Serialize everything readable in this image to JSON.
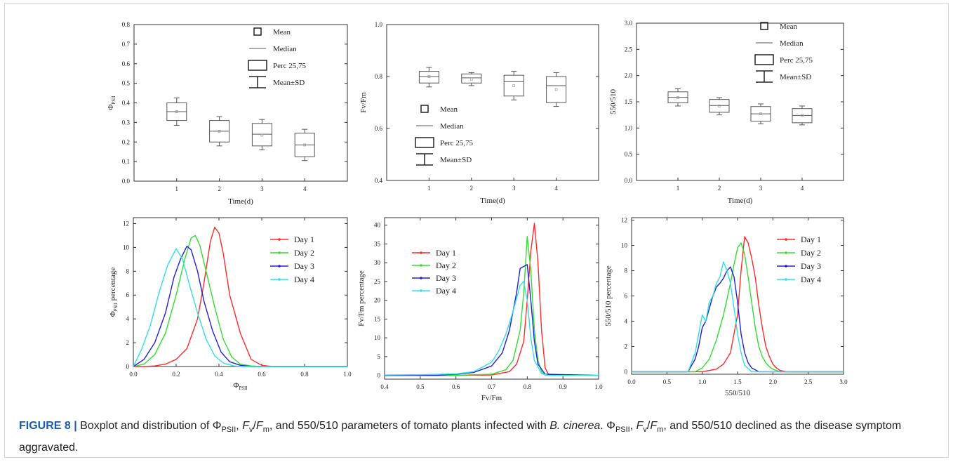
{
  "figure": {
    "label": "FIGURE 8 |",
    "caption_parts": [
      {
        "t": " Boxplot and distribution of "
      },
      {
        "t": "Φ"
      },
      {
        "t": "PSII",
        "sub": true
      },
      {
        "t": ", "
      },
      {
        "t": "F",
        "it": true
      },
      {
        "t": "v",
        "sub": true
      },
      {
        "t": "/"
      },
      {
        "t": "F",
        "it": true
      },
      {
        "t": "m",
        "sub": true
      },
      {
        "t": ", and 550/510 parameters of tomato plants infected with "
      },
      {
        "t": "B. cinerea",
        "it": true
      },
      {
        "t": ". "
      },
      {
        "t": "Φ"
      },
      {
        "t": "PSII",
        "sub": true
      },
      {
        "t": ", "
      },
      {
        "t": "F",
        "it": true
      },
      {
        "t": "v",
        "sub": true
      },
      {
        "t": "/"
      },
      {
        "t": "F",
        "it": true
      },
      {
        "t": "m",
        "sub": true
      },
      {
        "t": ", and 550/510 declined as the disease symptom aggravated."
      }
    ]
  },
  "boxplot_legend": [
    "Mean",
    "Median",
    "Perc 25,75",
    "Mean±SD"
  ],
  "line_colors": [
    "#ff2a2a",
    "#33dd33",
    "#2020d8",
    "#33e0e0"
  ],
  "chart_data": [
    {
      "type": "box",
      "xlabel": "Time(d)",
      "ylabel": "ΦPSII",
      "ylabel_main": "Φ",
      "ylabel_sub": "PSII",
      "ylim": [
        0,
        0.8
      ],
      "yticks": [
        "0.0",
        "0.1",
        "0.2",
        "0.3",
        "0.4",
        "0.5",
        "0.6",
        "0.7",
        "0.8"
      ],
      "categories": [
        "1",
        "2",
        "3",
        "4"
      ],
      "boxes": [
        {
          "q1": 0.31,
          "median": 0.355,
          "q3": 0.4,
          "mean": 0.355,
          "lower": 0.285,
          "upper": 0.425
        },
        {
          "q1": 0.2,
          "median": 0.255,
          "q3": 0.31,
          "mean": 0.255,
          "lower": 0.18,
          "upper": 0.33
        },
        {
          "q1": 0.18,
          "median": 0.24,
          "q3": 0.295,
          "mean": 0.235,
          "lower": 0.16,
          "upper": 0.315
        },
        {
          "q1": 0.125,
          "median": 0.185,
          "q3": 0.245,
          "mean": 0.185,
          "lower": 0.105,
          "upper": 0.265
        }
      ]
    },
    {
      "type": "box",
      "xlabel": "Time(d)",
      "ylabel": "Fv/Fm",
      "ylim": [
        0.4,
        1.0
      ],
      "yticks": [
        "0.4",
        "0.6",
        "0.8",
        "1.0"
      ],
      "categories": [
        "1",
        "2",
        "3",
        "4"
      ],
      "boxes": [
        {
          "q1": 0.775,
          "median": 0.8,
          "q3": 0.82,
          "mean": 0.8,
          "lower": 0.76,
          "upper": 0.835
        },
        {
          "q1": 0.775,
          "median": 0.795,
          "q3": 0.81,
          "mean": 0.79,
          "lower": 0.765,
          "upper": 0.815
        },
        {
          "q1": 0.725,
          "median": 0.78,
          "q3": 0.805,
          "mean": 0.765,
          "lower": 0.71,
          "upper": 0.82
        },
        {
          "q1": 0.7,
          "median": 0.765,
          "q3": 0.8,
          "mean": 0.75,
          "lower": 0.685,
          "upper": 0.815
        }
      ]
    },
    {
      "type": "box",
      "xlabel": "Time(d)",
      "ylabel": "550/510",
      "ylim": [
        0,
        3.0
      ],
      "yticks": [
        "0.0",
        "0.5",
        "1.0",
        "1.5",
        "2.0",
        "2.5",
        "3.0"
      ],
      "categories": [
        "1",
        "2",
        "3",
        "4"
      ],
      "boxes": [
        {
          "q1": 1.48,
          "median": 1.585,
          "q3": 1.69,
          "mean": 1.58,
          "lower": 1.42,
          "upper": 1.75
        },
        {
          "q1": 1.3,
          "median": 1.43,
          "q3": 1.545,
          "mean": 1.42,
          "lower": 1.25,
          "upper": 1.58
        },
        {
          "q1": 1.13,
          "median": 1.27,
          "q3": 1.41,
          "mean": 1.27,
          "lower": 1.08,
          "upper": 1.46
        },
        {
          "q1": 1.1,
          "median": 1.24,
          "q3": 1.37,
          "mean": 1.24,
          "lower": 1.06,
          "upper": 1.42
        }
      ]
    },
    {
      "type": "line",
      "xlabel": "ΦPSII",
      "xlabel_main": "Φ",
      "xlabel_sub": "PSII",
      "ylabel": "ΦPSII percentage",
      "ylabel_main": "Φ",
      "ylabel_sub": "PSII",
      "ylabel_tail": " percentage",
      "xlim": [
        0,
        1.0
      ],
      "ylim": [
        0,
        12.5
      ],
      "xticks": [
        "0.0",
        "0.2",
        "0.4",
        "0.6",
        "0.8",
        "1.0"
      ],
      "yticks": [
        "0",
        "2",
        "4",
        "6",
        "8",
        "10",
        "12"
      ],
      "series": [
        {
          "name": "Day 1",
          "x": [
            0,
            0.05,
            0.1,
            0.15,
            0.2,
            0.25,
            0.3,
            0.33,
            0.36,
            0.38,
            0.4,
            0.42,
            0.45,
            0.5,
            0.55,
            0.6,
            0.65,
            1.0
          ],
          "y": [
            0,
            0,
            0.05,
            0.2,
            0.6,
            1.5,
            4.0,
            7.0,
            10.5,
            11.7,
            11.2,
            9.5,
            6.0,
            2.8,
            0.6,
            0.1,
            0,
            0
          ]
        },
        {
          "name": "Day 2",
          "x": [
            0,
            0.05,
            0.1,
            0.15,
            0.2,
            0.24,
            0.27,
            0.29,
            0.31,
            0.34,
            0.38,
            0.42,
            0.46,
            0.5,
            0.55,
            0.6,
            1.0
          ],
          "y": [
            0,
            0.2,
            1.0,
            2.8,
            6.0,
            9.0,
            10.8,
            11.0,
            10.2,
            8.0,
            5.0,
            2.3,
            0.8,
            0.2,
            0.05,
            0,
            0
          ]
        },
        {
          "name": "Day 3",
          "x": [
            0,
            0.05,
            0.1,
            0.15,
            0.19,
            0.22,
            0.25,
            0.27,
            0.3,
            0.33,
            0.37,
            0.41,
            0.45,
            0.5,
            0.55,
            1.0
          ],
          "y": [
            0,
            0.6,
            2.0,
            4.5,
            7.5,
            9.0,
            10.1,
            9.8,
            8.0,
            5.5,
            3.0,
            1.2,
            0.4,
            0.1,
            0,
            0
          ]
        },
        {
          "name": "Day 4",
          "x": [
            0,
            0.04,
            0.08,
            0.12,
            0.16,
            0.2,
            0.23,
            0.26,
            0.3,
            0.34,
            0.38,
            0.42,
            0.47,
            0.52,
            1.0
          ],
          "y": [
            0,
            1.5,
            3.5,
            6.2,
            8.5,
            9.9,
            9.0,
            7.0,
            4.5,
            2.3,
            0.9,
            0.3,
            0.05,
            0,
            0
          ]
        }
      ]
    },
    {
      "type": "line",
      "xlabel": "Fv/Fm",
      "ylabel": "Fv/Fm percentage",
      "xlim": [
        0.4,
        1.0
      ],
      "ylim": [
        -1,
        42
      ],
      "xticks": [
        "0.4",
        "0.5",
        "0.6",
        "0.7",
        "0.8",
        "0.9",
        "1.0"
      ],
      "yticks": [
        "0",
        "5",
        "10",
        "15",
        "20",
        "25",
        "30",
        "35",
        "40"
      ],
      "series": [
        {
          "name": "Day 1",
          "x": [
            0.4,
            0.6,
            0.7,
            0.75,
            0.77,
            0.79,
            0.8,
            0.81,
            0.82,
            0.83,
            0.84,
            0.85,
            0.86,
            1.0
          ],
          "y": [
            0,
            0,
            0.1,
            1.0,
            3.0,
            9.0,
            20.0,
            33.0,
            40.5,
            30.0,
            12.0,
            2.0,
            0.2,
            0
          ]
        },
        {
          "name": "Day 2",
          "x": [
            0.4,
            0.6,
            0.7,
            0.74,
            0.76,
            0.78,
            0.79,
            0.8,
            0.81,
            0.82,
            0.83,
            0.84,
            0.85,
            1.0
          ],
          "y": [
            0,
            0.05,
            0.3,
            1.5,
            4.0,
            12.0,
            22.0,
            37.0,
            28.0,
            12.0,
            4.0,
            1.0,
            0.1,
            0
          ]
        },
        {
          "name": "Day 3",
          "x": [
            0.4,
            0.55,
            0.6,
            0.65,
            0.7,
            0.73,
            0.75,
            0.77,
            0.78,
            0.8,
            0.81,
            0.82,
            0.83,
            0.85,
            1.0
          ],
          "y": [
            0,
            0.05,
            0.3,
            0.8,
            2.5,
            6.0,
            12.0,
            22.0,
            28.5,
            29.5,
            20.0,
            9.0,
            3.0,
            0.3,
            0
          ]
        },
        {
          "name": "Day 4",
          "x": [
            0.4,
            0.5,
            0.6,
            0.65,
            0.7,
            0.72,
            0.74,
            0.76,
            0.78,
            0.79,
            0.8,
            0.81,
            0.82,
            0.84,
            0.86,
            1.0
          ],
          "y": [
            0.1,
            0.2,
            0.4,
            1.0,
            3.5,
            6.5,
            11.0,
            17.0,
            24.0,
            25.0,
            20.0,
            10.0,
            4.0,
            0.5,
            0,
            0
          ]
        }
      ]
    },
    {
      "type": "line",
      "xlabel": "550/510",
      "ylabel": "550/510 percentage",
      "xlim": [
        0,
        3.0
      ],
      "ylim": [
        -0.2,
        12.2
      ],
      "xticks": [
        "0.0",
        "0.5",
        "1.0",
        "1.5",
        "2.0",
        "2.5",
        "3.0"
      ],
      "yticks": [
        "0",
        "2",
        "4",
        "6",
        "8",
        "10",
        "12"
      ],
      "series": [
        {
          "name": "Day 1",
          "x": [
            0,
            1.0,
            1.2,
            1.3,
            1.4,
            1.5,
            1.55,
            1.6,
            1.65,
            1.7,
            1.75,
            1.8,
            1.85,
            1.9,
            1.95,
            2.0,
            2.05,
            2.1,
            2.2,
            3.0
          ],
          "y": [
            0,
            0,
            0.2,
            0.6,
            1.5,
            4.5,
            8.0,
            10.7,
            10.2,
            9.0,
            7.5,
            5.3,
            3.5,
            2.0,
            1.2,
            0.6,
            0.3,
            0.1,
            0,
            0
          ]
        },
        {
          "name": "Day 2",
          "x": [
            0,
            0.9,
            1.0,
            1.1,
            1.2,
            1.3,
            1.4,
            1.45,
            1.5,
            1.55,
            1.6,
            1.65,
            1.7,
            1.75,
            1.8,
            1.85,
            1.9,
            1.95,
            2.0,
            2.1,
            3.0
          ],
          "y": [
            0,
            0,
            0.3,
            1.0,
            2.5,
            4.5,
            7.0,
            8.5,
            9.8,
            10.2,
            9.3,
            7.5,
            5.5,
            3.5,
            2.0,
            1.2,
            0.7,
            0.4,
            0.2,
            0,
            0
          ]
        },
        {
          "name": "Day 3",
          "x": [
            0,
            0.8,
            0.9,
            0.95,
            1.0,
            1.05,
            1.1,
            1.15,
            1.2,
            1.25,
            1.3,
            1.35,
            1.4,
            1.45,
            1.5,
            1.55,
            1.6,
            1.65,
            1.7,
            1.8,
            3.0
          ],
          "y": [
            0,
            0,
            1.0,
            2.0,
            3.5,
            4.0,
            5.0,
            6.0,
            6.7,
            7.0,
            7.4,
            8.0,
            8.3,
            7.5,
            5.5,
            3.0,
            1.5,
            0.7,
            0.3,
            0,
            0
          ]
        },
        {
          "name": "Day 4",
          "x": [
            0,
            0.8,
            0.9,
            0.95,
            1.0,
            1.05,
            1.1,
            1.15,
            1.2,
            1.25,
            1.3,
            1.35,
            1.4,
            1.45,
            1.5,
            1.55,
            1.6,
            1.7,
            3.0
          ],
          "y": [
            0,
            0,
            1.5,
            3.0,
            4.5,
            4.0,
            5.5,
            6.0,
            7.0,
            7.5,
            8.7,
            8.0,
            7.0,
            5.0,
            3.0,
            1.5,
            0.5,
            0,
            0
          ]
        }
      ]
    }
  ]
}
